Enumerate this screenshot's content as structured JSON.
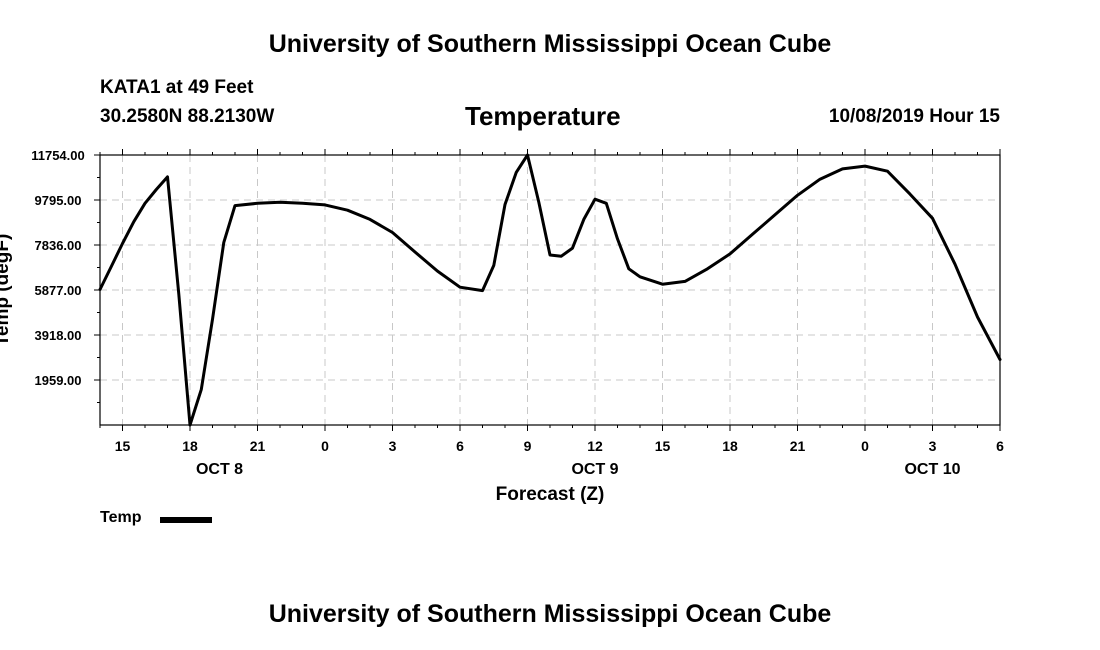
{
  "header": {
    "title_top": "University of Southern Mississippi Ocean Cube",
    "title_bottom": "University of Southern Mississippi Ocean Cube",
    "station": "KATA1 at 49 Feet",
    "coords": "30.2580N 88.2130W",
    "subtitle": "Temperature",
    "datetime": "10/08/2019 Hour 15"
  },
  "chart_data": {
    "type": "line",
    "title": "Temperature",
    "xlabel": "Forecast (Z)",
    "ylabel": "Temp (degF)",
    "ylim": [
      0,
      11754
    ],
    "xlim": [
      0,
      40
    ],
    "x_unit": "hours since 10/08/2019 15Z",
    "yticks": [
      {
        "v": 11754,
        "label": "11754.00"
      },
      {
        "v": 9795,
        "label": "9795.00"
      },
      {
        "v": 7836,
        "label": "7836.00"
      },
      {
        "v": 5877,
        "label": "5877.00"
      },
      {
        "v": 3918,
        "label": "3918.00"
      },
      {
        "v": 1959,
        "label": "1959.00"
      }
    ],
    "xticks": [
      {
        "v": 1,
        "label": "15"
      },
      {
        "v": 4,
        "label": "18"
      },
      {
        "v": 7,
        "label": "21"
      },
      {
        "v": 10,
        "label": "0"
      },
      {
        "v": 13,
        "label": "3"
      },
      {
        "v": 16,
        "label": "6"
      },
      {
        "v": 19,
        "label": "9"
      },
      {
        "v": 22,
        "label": "12"
      },
      {
        "v": 25,
        "label": "15"
      },
      {
        "v": 28,
        "label": "18"
      },
      {
        "v": 31,
        "label": "21"
      },
      {
        "v": 34,
        "label": "0"
      },
      {
        "v": 37,
        "label": "3"
      },
      {
        "v": 40,
        "label": "6"
      }
    ],
    "day_labels": [
      {
        "v": 5,
        "label": "OCT 8"
      },
      {
        "v": 22,
        "label": "OCT 9"
      },
      {
        "v": 37,
        "label": "OCT 10"
      }
    ],
    "series": [
      {
        "name": "Temp",
        "color": "#000000",
        "x": [
          0,
          0.5,
          1,
          1.5,
          2,
          2.5,
          3,
          3.5,
          4,
          4.5,
          5,
          5.5,
          6,
          7,
          8,
          9,
          10,
          11,
          12,
          13,
          14,
          15,
          16,
          17,
          17.5,
          18,
          18.5,
          19,
          19.5,
          20,
          20.5,
          21,
          21.5,
          22,
          22.5,
          23,
          23.5,
          24,
          25,
          26,
          27,
          28,
          29,
          30,
          31,
          32,
          33,
          34,
          35,
          36,
          37,
          38,
          39,
          40
        ],
        "values": [
          5900,
          6900,
          7900,
          8850,
          9650,
          10250,
          10800,
          5700,
          0,
          1550,
          4600,
          7950,
          9550,
          9650,
          9700,
          9650,
          9580,
          9350,
          8950,
          8380,
          7530,
          6700,
          6000,
          5850,
          6950,
          9600,
          11000,
          11754,
          9700,
          7400,
          7350,
          7700,
          8950,
          9830,
          9650,
          8100,
          6800,
          6450,
          6130,
          6250,
          6800,
          7450,
          8300,
          9150,
          10000,
          10700,
          11150,
          11270,
          11050,
          10050,
          9000,
          7000,
          4700,
          2850
        ]
      }
    ]
  },
  "legend": {
    "label": "Temp",
    "color": "#000000"
  }
}
